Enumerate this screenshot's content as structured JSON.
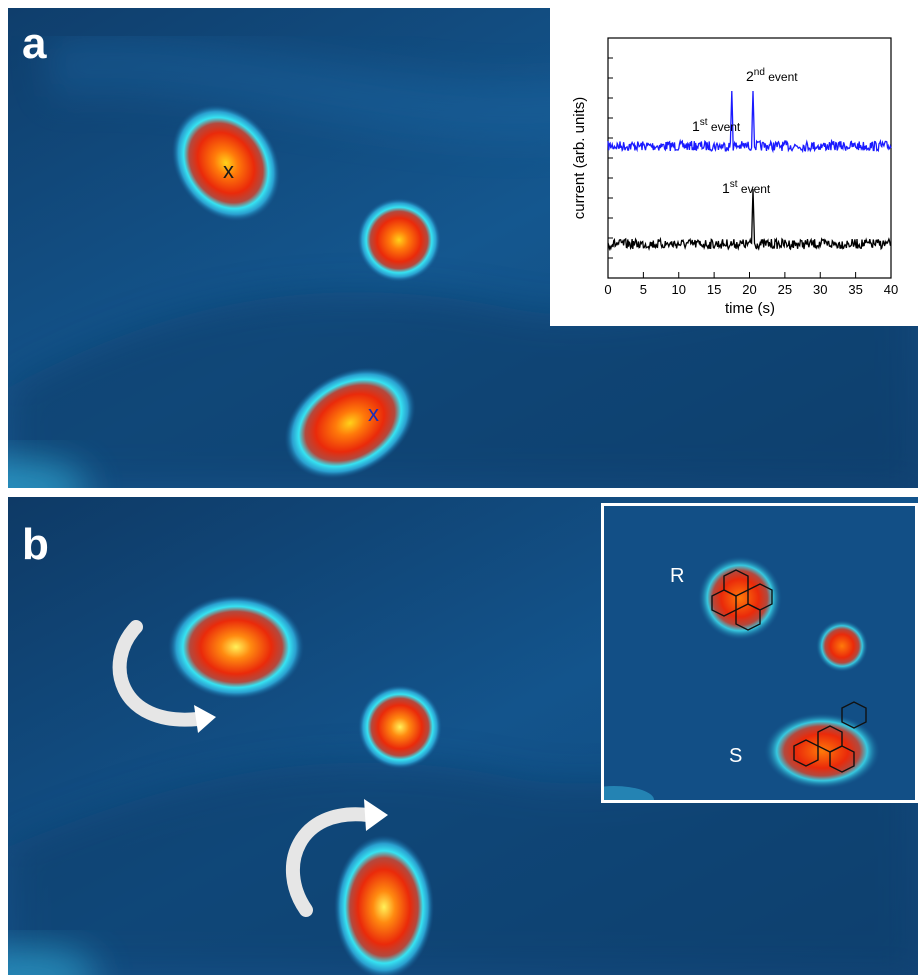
{
  "panel_a": {
    "label": "a",
    "marks": [
      "x",
      "x"
    ]
  },
  "panel_b": {
    "label": "b",
    "inset_labels": {
      "r": "R",
      "s": "S"
    }
  },
  "inset_plot": {
    "ylabel": "current (arb. units)",
    "xlabel": "time (s)",
    "xticks": [
      "0",
      "5",
      "10",
      "15",
      "20",
      "25",
      "30",
      "35",
      "40"
    ],
    "annotations": {
      "blue_1_base": "1",
      "blue_1_sup": "st",
      "blue_1_suffix": " event",
      "blue_2_base": "2",
      "blue_2_sup": "nd",
      "blue_2_suffix": " event",
      "black_1_base": "1",
      "black_1_sup": "st",
      "black_1_suffix": " event"
    },
    "colors": {
      "upper_trace": "#1a1aff",
      "lower_trace": "#000000"
    }
  },
  "chart_data": {
    "type": "line",
    "xlabel": "time (s)",
    "ylabel": "current (arb. units)",
    "xlim": [
      0,
      40
    ],
    "series": [
      {
        "events_at_s": [
          17.5,
          20.5
        ]
      },
      {
        "events_at_s": [
          20.5
        ]
      }
    ]
  }
}
